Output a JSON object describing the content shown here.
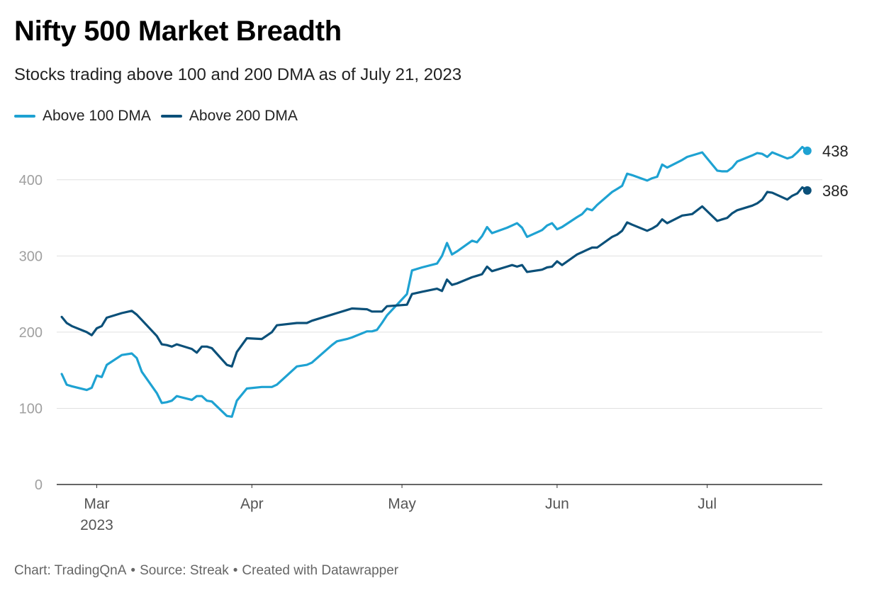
{
  "header": {
    "title": "Nifty 500 Market Breadth",
    "subtitle": "Stocks trading above 100 and 200 DMA as of July 21, 2023"
  },
  "legend": {
    "items": [
      {
        "label": "Above 100 DMA",
        "color": "#1ea2d2"
      },
      {
        "label": "Above 200 DMA",
        "color": "#0b5079"
      }
    ]
  },
  "footer": {
    "chart_by": "Chart: TradingQnA",
    "source": "Source: Streak",
    "created": "Created with Datawrapper",
    "separator": "•"
  },
  "chart_data": {
    "type": "line",
    "title": "Nifty 500 Market Breadth",
    "subtitle": "Stocks trading above 100 and 200 DMA as of July 21, 2023",
    "xlabel": "",
    "ylabel": "",
    "ylim": [
      0,
      450
    ],
    "yticks": [
      0,
      100,
      200,
      300,
      400
    ],
    "xlim": [
      "2023-02-21",
      "2023-07-24"
    ],
    "xticks": [
      {
        "date": "2023-03-01",
        "label": "Mar",
        "sublabel": "2023"
      },
      {
        "date": "2023-04-01",
        "label": "Apr"
      },
      {
        "date": "2023-05-01",
        "label": "May"
      },
      {
        "date": "2023-06-01",
        "label": "Jun"
      },
      {
        "date": "2023-07-01",
        "label": "Jul"
      }
    ],
    "grid": "horizontal",
    "legend_position": "top-left",
    "end_labels": true,
    "series": [
      {
        "name": "Above 100 DMA",
        "color": "#1ea2d2",
        "end_label": "438",
        "points": [
          [
            "2023-02-22",
            145
          ],
          [
            "2023-02-23",
            131
          ],
          [
            "2023-02-24",
            129
          ],
          [
            "2023-02-27",
            124
          ],
          [
            "2023-02-28",
            127
          ],
          [
            "2023-03-01",
            143
          ],
          [
            "2023-03-02",
            141
          ],
          [
            "2023-03-03",
            157
          ],
          [
            "2023-03-06",
            170
          ],
          [
            "2023-03-08",
            172
          ],
          [
            "2023-03-09",
            166
          ],
          [
            "2023-03-10",
            148
          ],
          [
            "2023-03-13",
            120
          ],
          [
            "2023-03-14",
            107
          ],
          [
            "2023-03-15",
            108
          ],
          [
            "2023-03-16",
            110
          ],
          [
            "2023-03-17",
            116
          ],
          [
            "2023-03-20",
            111
          ],
          [
            "2023-03-21",
            116
          ],
          [
            "2023-03-22",
            116
          ],
          [
            "2023-03-23",
            110
          ],
          [
            "2023-03-24",
            109
          ],
          [
            "2023-03-27",
            90
          ],
          [
            "2023-03-28",
            89
          ],
          [
            "2023-03-29",
            110
          ],
          [
            "2023-03-31",
            126
          ],
          [
            "2023-04-03",
            128
          ],
          [
            "2023-04-05",
            128
          ],
          [
            "2023-04-06",
            131
          ],
          [
            "2023-04-10",
            155
          ],
          [
            "2023-04-12",
            157
          ],
          [
            "2023-04-13",
            160
          ],
          [
            "2023-04-17",
            183
          ],
          [
            "2023-04-18",
            188
          ],
          [
            "2023-04-20",
            191
          ],
          [
            "2023-04-21",
            193
          ],
          [
            "2023-04-24",
            201
          ],
          [
            "2023-04-25",
            201
          ],
          [
            "2023-04-26",
            203
          ],
          [
            "2023-04-27",
            212
          ],
          [
            "2023-04-28",
            222
          ],
          [
            "2023-05-02",
            250
          ],
          [
            "2023-05-03",
            281
          ],
          [
            "2023-05-05",
            285
          ],
          [
            "2023-05-08",
            290
          ],
          [
            "2023-05-09",
            300
          ],
          [
            "2023-05-10",
            317
          ],
          [
            "2023-05-11",
            302
          ],
          [
            "2023-05-12",
            306
          ],
          [
            "2023-05-15",
            320
          ],
          [
            "2023-05-16",
            318
          ],
          [
            "2023-05-17",
            326
          ],
          [
            "2023-05-18",
            338
          ],
          [
            "2023-05-19",
            330
          ],
          [
            "2023-05-22",
            337
          ],
          [
            "2023-05-23",
            340
          ],
          [
            "2023-05-24",
            343
          ],
          [
            "2023-05-25",
            337
          ],
          [
            "2023-05-26",
            325
          ],
          [
            "2023-05-29",
            334
          ],
          [
            "2023-05-30",
            340
          ],
          [
            "2023-05-31",
            343
          ],
          [
            "2023-06-01",
            335
          ],
          [
            "2023-06-02",
            338
          ],
          [
            "2023-06-05",
            351
          ],
          [
            "2023-06-06",
            355
          ],
          [
            "2023-06-07",
            362
          ],
          [
            "2023-06-08",
            360
          ],
          [
            "2023-06-09",
            367
          ],
          [
            "2023-06-12",
            384
          ],
          [
            "2023-06-13",
            388
          ],
          [
            "2023-06-14",
            392
          ],
          [
            "2023-06-15",
            408
          ],
          [
            "2023-06-16",
            406
          ],
          [
            "2023-06-19",
            399
          ],
          [
            "2023-06-20",
            402
          ],
          [
            "2023-06-21",
            404
          ],
          [
            "2023-06-22",
            420
          ],
          [
            "2023-06-23",
            416
          ],
          [
            "2023-06-26",
            426
          ],
          [
            "2023-06-27",
            430
          ],
          [
            "2023-06-28",
            432
          ],
          [
            "2023-06-30",
            436
          ],
          [
            "2023-07-03",
            412
          ],
          [
            "2023-07-04",
            411
          ],
          [
            "2023-07-05",
            411
          ],
          [
            "2023-07-06",
            416
          ],
          [
            "2023-07-07",
            424
          ],
          [
            "2023-07-10",
            432
          ],
          [
            "2023-07-11",
            435
          ],
          [
            "2023-07-12",
            434
          ],
          [
            "2023-07-13",
            430
          ],
          [
            "2023-07-14",
            436
          ],
          [
            "2023-07-17",
            428
          ],
          [
            "2023-07-18",
            430
          ],
          [
            "2023-07-19",
            436
          ],
          [
            "2023-07-20",
            443
          ],
          [
            "2023-07-21",
            438
          ]
        ]
      },
      {
        "name": "Above 200 DMA",
        "color": "#0b5079",
        "end_label": "386",
        "points": [
          [
            "2023-02-22",
            220
          ],
          [
            "2023-02-23",
            212
          ],
          [
            "2023-02-24",
            208
          ],
          [
            "2023-02-27",
            200
          ],
          [
            "2023-02-28",
            196
          ],
          [
            "2023-03-01",
            205
          ],
          [
            "2023-03-02",
            208
          ],
          [
            "2023-03-03",
            219
          ],
          [
            "2023-03-06",
            225
          ],
          [
            "2023-03-08",
            228
          ],
          [
            "2023-03-09",
            223
          ],
          [
            "2023-03-10",
            216
          ],
          [
            "2023-03-13",
            195
          ],
          [
            "2023-03-14",
            184
          ],
          [
            "2023-03-15",
            183
          ],
          [
            "2023-03-16",
            181
          ],
          [
            "2023-03-17",
            184
          ],
          [
            "2023-03-20",
            178
          ],
          [
            "2023-03-21",
            173
          ],
          [
            "2023-03-22",
            181
          ],
          [
            "2023-03-23",
            181
          ],
          [
            "2023-03-24",
            179
          ],
          [
            "2023-03-27",
            157
          ],
          [
            "2023-03-28",
            155
          ],
          [
            "2023-03-29",
            174
          ],
          [
            "2023-03-31",
            192
          ],
          [
            "2023-04-03",
            191
          ],
          [
            "2023-04-05",
            200
          ],
          [
            "2023-04-06",
            209
          ],
          [
            "2023-04-10",
            212
          ],
          [
            "2023-04-12",
            212
          ],
          [
            "2023-04-13",
            215
          ],
          [
            "2023-04-17",
            223
          ],
          [
            "2023-04-18",
            225
          ],
          [
            "2023-04-20",
            229
          ],
          [
            "2023-04-21",
            231
          ],
          [
            "2023-04-24",
            230
          ],
          [
            "2023-04-25",
            227
          ],
          [
            "2023-04-26",
            227
          ],
          [
            "2023-04-27",
            227
          ],
          [
            "2023-04-28",
            234
          ],
          [
            "2023-05-02",
            236
          ],
          [
            "2023-05-03",
            250
          ],
          [
            "2023-05-05",
            253
          ],
          [
            "2023-05-08",
            257
          ],
          [
            "2023-05-09",
            254
          ],
          [
            "2023-05-10",
            269
          ],
          [
            "2023-05-11",
            262
          ],
          [
            "2023-05-12",
            264
          ],
          [
            "2023-05-15",
            272
          ],
          [
            "2023-05-16",
            274
          ],
          [
            "2023-05-17",
            276
          ],
          [
            "2023-05-18",
            286
          ],
          [
            "2023-05-19",
            280
          ],
          [
            "2023-05-22",
            286
          ],
          [
            "2023-05-23",
            288
          ],
          [
            "2023-05-24",
            286
          ],
          [
            "2023-05-25",
            288
          ],
          [
            "2023-05-26",
            279
          ],
          [
            "2023-05-29",
            282
          ],
          [
            "2023-05-30",
            285
          ],
          [
            "2023-05-31",
            286
          ],
          [
            "2023-06-01",
            293
          ],
          [
            "2023-06-02",
            288
          ],
          [
            "2023-06-05",
            302
          ],
          [
            "2023-06-06",
            305
          ],
          [
            "2023-06-07",
            308
          ],
          [
            "2023-06-08",
            311
          ],
          [
            "2023-06-09",
            311
          ],
          [
            "2023-06-12",
            325
          ],
          [
            "2023-06-13",
            328
          ],
          [
            "2023-06-14",
            333
          ],
          [
            "2023-06-15",
            344
          ],
          [
            "2023-06-16",
            341
          ],
          [
            "2023-06-19",
            333
          ],
          [
            "2023-06-20",
            336
          ],
          [
            "2023-06-21",
            340
          ],
          [
            "2023-06-22",
            348
          ],
          [
            "2023-06-23",
            343
          ],
          [
            "2023-06-26",
            353
          ],
          [
            "2023-06-27",
            354
          ],
          [
            "2023-06-28",
            355
          ],
          [
            "2023-06-30",
            365
          ],
          [
            "2023-07-03",
            346
          ],
          [
            "2023-07-04",
            348
          ],
          [
            "2023-07-05",
            350
          ],
          [
            "2023-07-06",
            356
          ],
          [
            "2023-07-07",
            360
          ],
          [
            "2023-07-10",
            366
          ],
          [
            "2023-07-11",
            369
          ],
          [
            "2023-07-12",
            374
          ],
          [
            "2023-07-13",
            384
          ],
          [
            "2023-07-14",
            383
          ],
          [
            "2023-07-17",
            374
          ],
          [
            "2023-07-18",
            379
          ],
          [
            "2023-07-19",
            382
          ],
          [
            "2023-07-20",
            390
          ],
          [
            "2023-07-21",
            386
          ]
        ]
      }
    ]
  }
}
